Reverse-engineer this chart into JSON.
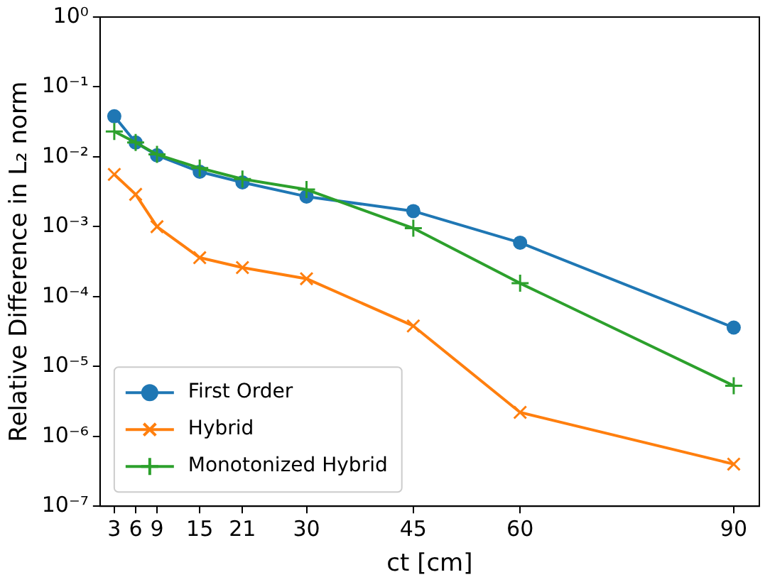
{
  "chart_data": {
    "type": "line",
    "xlabel": "ct [cm]",
    "ylabel": "Relative Difference in L₂ norm",
    "x": [
      3,
      6,
      9,
      15,
      21,
      30,
      45,
      60,
      90
    ],
    "series": [
      {
        "name": "First Order",
        "color": "#1f77b4",
        "marker": "circle",
        "values": [
          0.038,
          0.016,
          0.0105,
          0.0061,
          0.0043,
          0.0027,
          0.00167,
          0.00059,
          3.6e-05
        ]
      },
      {
        "name": "Hybrid",
        "color": "#ff7f0e",
        "marker": "x",
        "values": [
          0.0056,
          0.0029,
          0.001,
          0.00036,
          0.00026,
          0.00018,
          3.8e-05,
          2.2e-06,
          4e-07
        ]
      },
      {
        "name": "Monotonized Hybrid",
        "color": "#2ca02c",
        "marker": "cross",
        "values": [
          0.023,
          0.016,
          0.0108,
          0.0069,
          0.0048,
          0.0034,
          0.00095,
          0.000155,
          5.3e-06
        ]
      }
    ],
    "log": "y",
    "xlim": [
      1,
      93.6
    ],
    "xticks": [
      3,
      6,
      9,
      15,
      21,
      30,
      45,
      60,
      90
    ],
    "ylim": [
      1e-07,
      1
    ],
    "yticks": [
      {
        "value": 1e-07,
        "label": "10⁻⁷"
      },
      {
        "value": 1e-06,
        "label": "10⁻⁶"
      },
      {
        "value": 1e-05,
        "label": "10⁻⁵"
      },
      {
        "value": 0.0001,
        "label": "10⁻⁴"
      },
      {
        "value": 0.001,
        "label": "10⁻³"
      },
      {
        "value": 0.01,
        "label": "10⁻²"
      },
      {
        "value": 0.1,
        "label": "10⁻¹"
      },
      {
        "value": 1,
        "label": "10⁰"
      }
    ],
    "grid": false,
    "legend": "bottom left"
  }
}
